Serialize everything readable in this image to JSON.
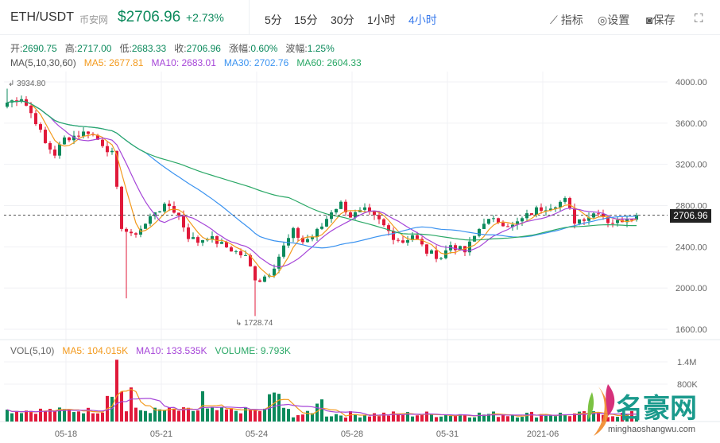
{
  "header": {
    "symbol": "ETH/USDT",
    "exchange": "币安网",
    "price": "$2706.96",
    "change": "+2.73%",
    "timeframes": [
      "5分",
      "15分",
      "30分",
      "1小时",
      "4小时"
    ],
    "active_timeframe": "4小时",
    "tools": {
      "indicator": "指标",
      "settings": "设置",
      "save": "保存"
    }
  },
  "ohlc": {
    "open_label": "开:",
    "open": "2690.75",
    "high_label": "高:",
    "high": "2717.00",
    "low_label": "低:",
    "low": "2683.33",
    "close_label": "收:",
    "close": "2706.96",
    "change_label": "涨幅:",
    "change": "0.60%",
    "amp_label": "波幅:",
    "amp": "1.25%"
  },
  "ma": {
    "label": "MA(5,10,30,60)",
    "ma5": "MA5: 2677.81",
    "ma10": "MA10: 2683.01",
    "ma30": "MA30: 2702.76",
    "ma60": "MA60: 2604.33"
  },
  "vol": {
    "label": "VOL(5,10)",
    "ma5": "MA5: 104.015K",
    "ma10": "MA10: 133.535K",
    "volume": "VOLUME: 9.793K"
  },
  "watermark": {
    "text": "名豪网",
    "url": "minghaoshangwu.com"
  },
  "colors": {
    "up": "#0c8a5c",
    "down": "#e0193a",
    "ma5": "#f39a1d",
    "ma10": "#a646d8",
    "ma30": "#3b93f0",
    "ma60": "#2aa866"
  },
  "chart_data": {
    "type": "candlestick",
    "y_ticks": [
      "4000.00",
      "3600.00",
      "3200.00",
      "2800.00",
      "2400.00",
      "2000.00",
      "1600.00"
    ],
    "ylim": [
      1600,
      4000
    ],
    "vol_ticks": [
      "1.4M",
      "800K"
    ],
    "x_ticks": [
      "05-18",
      "05-21",
      "05-24",
      "05-28",
      "05-31",
      "2021-06"
    ],
    "last_price": "2706.96",
    "max_label": "3934.80",
    "min_label": "1728.74",
    "close_keypoints": [
      [
        0,
        3800
      ],
      [
        3,
        3850
      ],
      [
        6,
        3620
      ],
      [
        8,
        3400
      ],
      [
        10,
        3300
      ],
      [
        12,
        3450
      ],
      [
        17,
        3520
      ],
      [
        20,
        3400
      ],
      [
        22,
        3300
      ],
      [
        23,
        2950
      ],
      [
        24,
        2600
      ],
      [
        26,
        2500
      ],
      [
        29,
        2620
      ],
      [
        31,
        2750
      ],
      [
        34,
        2800
      ],
      [
        36,
        2700
      ],
      [
        38,
        2500
      ],
      [
        40,
        2450
      ],
      [
        42,
        2500
      ],
      [
        45,
        2420
      ],
      [
        48,
        2350
      ],
      [
        50,
        2300
      ],
      [
        52,
        2100
      ],
      [
        53,
        2080
      ],
      [
        55,
        2150
      ],
      [
        56,
        2220
      ],
      [
        58,
        2400
      ],
      [
        60,
        2550
      ],
      [
        62,
        2450
      ],
      [
        64,
        2500
      ],
      [
        66,
        2600
      ],
      [
        68,
        2750
      ],
      [
        70,
        2820
      ],
      [
        72,
        2700
      ],
      [
        75,
        2750
      ],
      [
        78,
        2650
      ],
      [
        81,
        2500
      ],
      [
        83,
        2450
      ],
      [
        85,
        2520
      ],
      [
        88,
        2350
      ],
      [
        91,
        2300
      ],
      [
        93,
        2420
      ],
      [
        96,
        2350
      ],
      [
        98,
        2500
      ],
      [
        100,
        2650
      ],
      [
        103,
        2650
      ],
      [
        106,
        2600
      ],
      [
        109,
        2700
      ],
      [
        111,
        2760
      ],
      [
        114,
        2800
      ],
      [
        117,
        2850
      ],
      [
        119,
        2650
      ],
      [
        122,
        2700
      ],
      [
        124,
        2750
      ],
      [
        126,
        2650
      ],
      [
        128,
        2640
      ],
      [
        130,
        2690
      ],
      [
        132,
        2707
      ]
    ],
    "wicks": [
      {
        "index": 25,
        "low": 1900
      },
      {
        "index": 52,
        "low": 1728.74
      },
      {
        "index": 0,
        "high": 3934.8
      }
    ],
    "volume_spikes": [
      [
        21,
        600000
      ],
      [
        22,
        580000
      ],
      [
        23,
        1450000
      ],
      [
        24,
        700000
      ],
      [
        26,
        800000
      ],
      [
        41,
        710000
      ],
      [
        55,
        640000
      ],
      [
        56,
        680000
      ],
      [
        57,
        650000
      ],
      [
        66,
        520000
      ],
      [
        65,
        420000
      ]
    ]
  }
}
